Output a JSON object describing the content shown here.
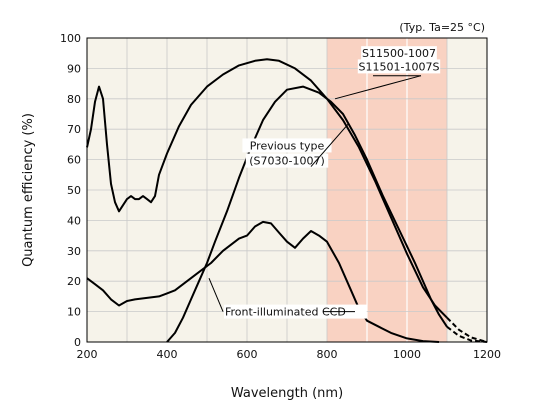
{
  "chart_data": {
    "type": "line",
    "title": "",
    "annotation_top_right": "(Typ. Ta=25 °C)",
    "xlabel": "Wavelength (nm)",
    "ylabel": "Quantum efficiency (%)",
    "xlim": [
      200,
      1200
    ],
    "ylim": [
      0,
      100
    ],
    "x_ticks": [
      200,
      400,
      600,
      800,
      1000,
      1200
    ],
    "y_ticks": [
      0,
      10,
      20,
      30,
      40,
      50,
      60,
      70,
      80,
      90,
      100
    ],
    "grid": true,
    "grid_x_step": 100,
    "grid_y_step": 10,
    "highlight_region": {
      "x": [
        800,
        1100
      ],
      "color": "#f9d2c2"
    },
    "plot_background": "#f6f3ea",
    "series": [
      {
        "name": "S11500-1007 S11501-1007S",
        "points": [
          [
            200,
            64
          ],
          [
            210,
            70
          ],
          [
            220,
            79
          ],
          [
            230,
            84
          ],
          [
            240,
            80
          ],
          [
            250,
            65
          ],
          [
            260,
            52
          ],
          [
            270,
            46
          ],
          [
            280,
            43
          ],
          [
            290,
            45
          ],
          [
            300,
            47
          ],
          [
            310,
            48
          ],
          [
            320,
            47
          ],
          [
            330,
            47
          ],
          [
            340,
            48
          ],
          [
            350,
            47
          ],
          [
            360,
            46
          ],
          [
            370,
            48
          ],
          [
            380,
            55
          ],
          [
            400,
            62
          ],
          [
            430,
            71
          ],
          [
            460,
            78
          ],
          [
            500,
            84
          ],
          [
            540,
            88
          ],
          [
            580,
            91
          ],
          [
            620,
            92.5
          ],
          [
            650,
            93
          ],
          [
            680,
            92.5
          ],
          [
            720,
            90
          ],
          [
            760,
            86
          ],
          [
            800,
            80
          ],
          [
            840,
            73
          ],
          [
            880,
            64
          ],
          [
            920,
            53
          ],
          [
            960,
            41
          ],
          [
            1000,
            29
          ],
          [
            1040,
            18
          ],
          [
            1070,
            12
          ],
          [
            1100,
            8
          ]
        ],
        "dashed_tail": [
          [
            1100,
            8
          ],
          [
            1130,
            4
          ],
          [
            1160,
            1.5
          ],
          [
            1200,
            0
          ]
        ]
      },
      {
        "name": "Previous type (S7030-1007)",
        "points": [
          [
            400,
            0
          ],
          [
            420,
            3
          ],
          [
            440,
            8
          ],
          [
            460,
            14
          ],
          [
            480,
            20
          ],
          [
            500,
            26
          ],
          [
            520,
            33
          ],
          [
            550,
            43
          ],
          [
            580,
            54
          ],
          [
            610,
            64
          ],
          [
            640,
            73
          ],
          [
            670,
            79
          ],
          [
            700,
            83
          ],
          [
            740,
            84
          ],
          [
            780,
            82
          ],
          [
            810,
            79
          ],
          [
            840,
            75
          ],
          [
            870,
            68
          ],
          [
            900,
            60
          ],
          [
            940,
            48
          ],
          [
            980,
            37
          ],
          [
            1020,
            26
          ],
          [
            1060,
            14
          ],
          [
            1080,
            9
          ],
          [
            1100,
            5
          ]
        ],
        "dashed_tail": [
          [
            1100,
            5
          ],
          [
            1130,
            2
          ],
          [
            1160,
            0.5
          ],
          [
            1200,
            0
          ]
        ]
      },
      {
        "name": "Front-illuminated CCD",
        "points": [
          [
            200,
            21
          ],
          [
            220,
            19
          ],
          [
            240,
            17
          ],
          [
            260,
            14
          ],
          [
            280,
            12
          ],
          [
            300,
            13.5
          ],
          [
            320,
            14
          ],
          [
            350,
            14.5
          ],
          [
            380,
            15
          ],
          [
            400,
            16
          ],
          [
            420,
            17
          ],
          [
            450,
            20
          ],
          [
            480,
            23
          ],
          [
            510,
            26
          ],
          [
            540,
            30
          ],
          [
            560,
            32
          ],
          [
            580,
            34
          ],
          [
            600,
            35
          ],
          [
            620,
            38
          ],
          [
            640,
            39.5
          ],
          [
            660,
            39
          ],
          [
            680,
            36
          ],
          [
            700,
            33
          ],
          [
            720,
            31
          ],
          [
            740,
            34
          ],
          [
            760,
            36.5
          ],
          [
            780,
            35
          ],
          [
            800,
            33
          ],
          [
            830,
            26
          ],
          [
            860,
            17
          ],
          [
            880,
            11
          ],
          [
            900,
            7
          ],
          [
            930,
            5
          ],
          [
            960,
            3
          ],
          [
            1000,
            1.2
          ],
          [
            1040,
            0.3
          ],
          [
            1080,
            0
          ]
        ]
      }
    ],
    "annotations": [
      {
        "text": "S11500-1007",
        "anchor": [
          980,
          95
        ]
      },
      {
        "text": "S11501-1007S",
        "anchor": [
          980,
          90
        ]
      },
      {
        "text": "Previous type",
        "anchor": [
          660,
          64
        ]
      },
      {
        "text": "(S7030-1007)",
        "anchor": [
          660,
          59
        ]
      },
      {
        "text": "Front-illuminated CCD",
        "anchor": [
          540,
          10
        ]
      }
    ]
  }
}
